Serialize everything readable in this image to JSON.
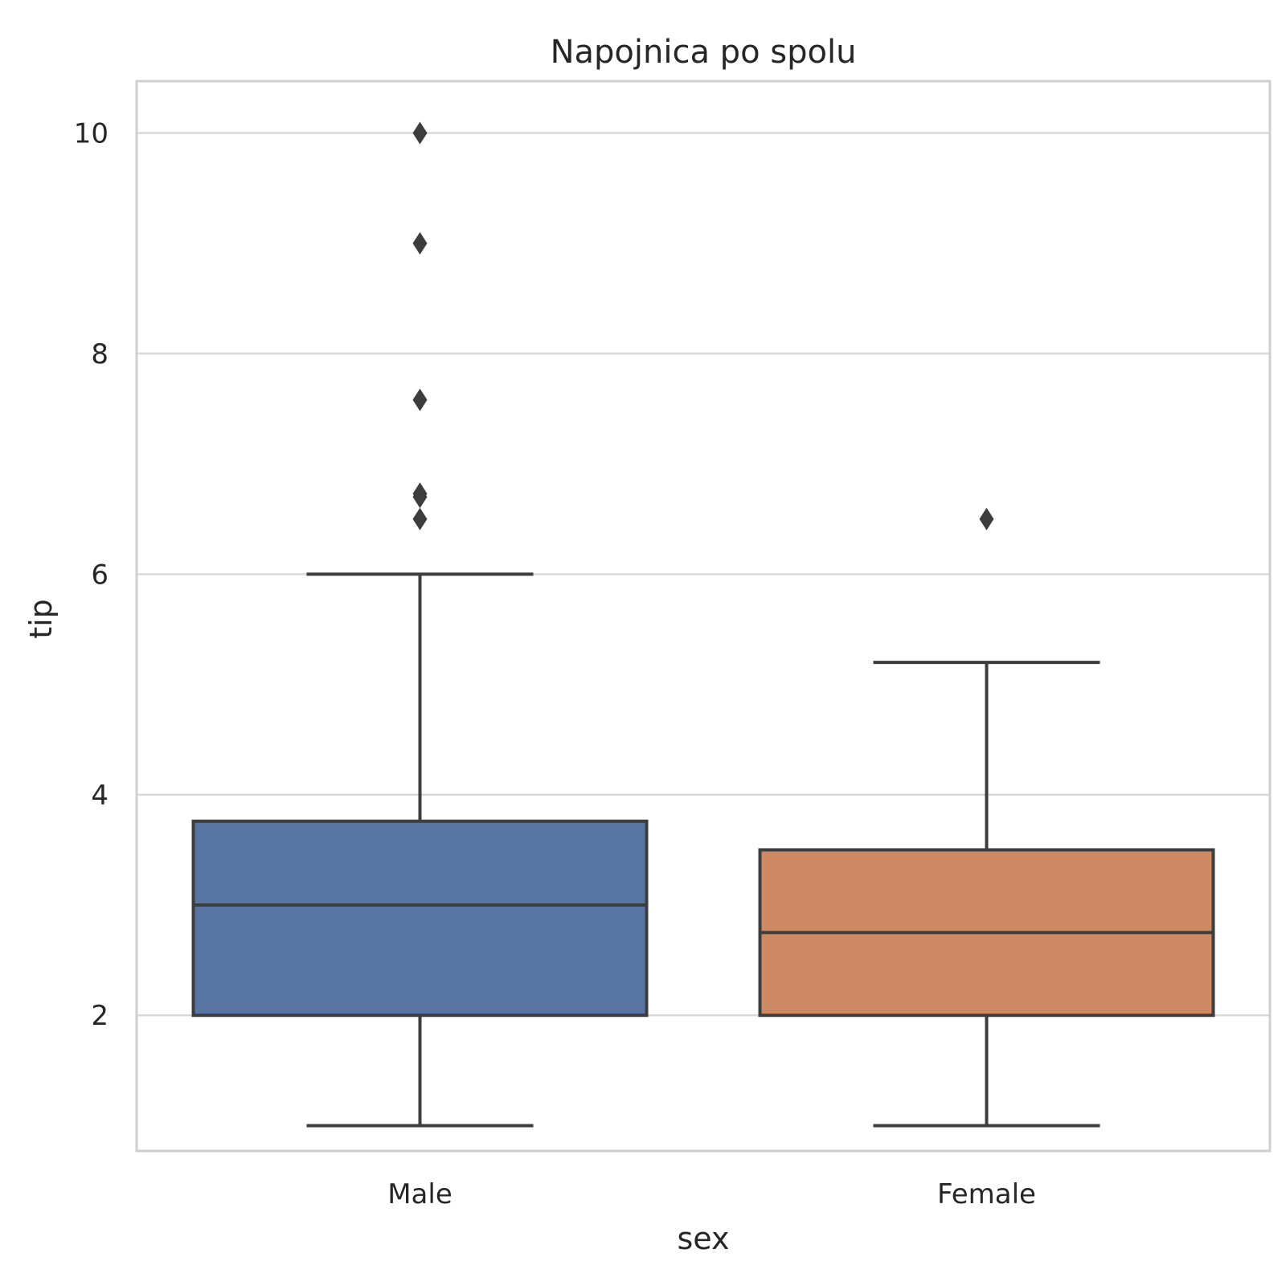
{
  "chart_data": {
    "type": "box",
    "title": "Napojnica po spolu",
    "xlabel": "sex",
    "ylabel": "tip",
    "ylim": [
      0.77,
      10.47
    ],
    "yticks": [
      2,
      4,
      6,
      8,
      10
    ],
    "grid": true,
    "categories": [
      "Male",
      "Female"
    ],
    "series": [
      {
        "category": "Male",
        "color": "#5975a4",
        "whisker_low": 1.0,
        "q1": 2.0,
        "median": 3.0,
        "q3": 3.76,
        "whisker_high": 6.0,
        "outliers": [
          10.0,
          9.0,
          7.58,
          6.73,
          6.7,
          6.5
        ]
      },
      {
        "category": "Female",
        "color": "#cc8963",
        "whisker_low": 1.0,
        "q1": 2.0,
        "median": 2.75,
        "q3": 3.5,
        "whisker_high": 5.2,
        "outliers": [
          6.5
        ]
      }
    ]
  }
}
